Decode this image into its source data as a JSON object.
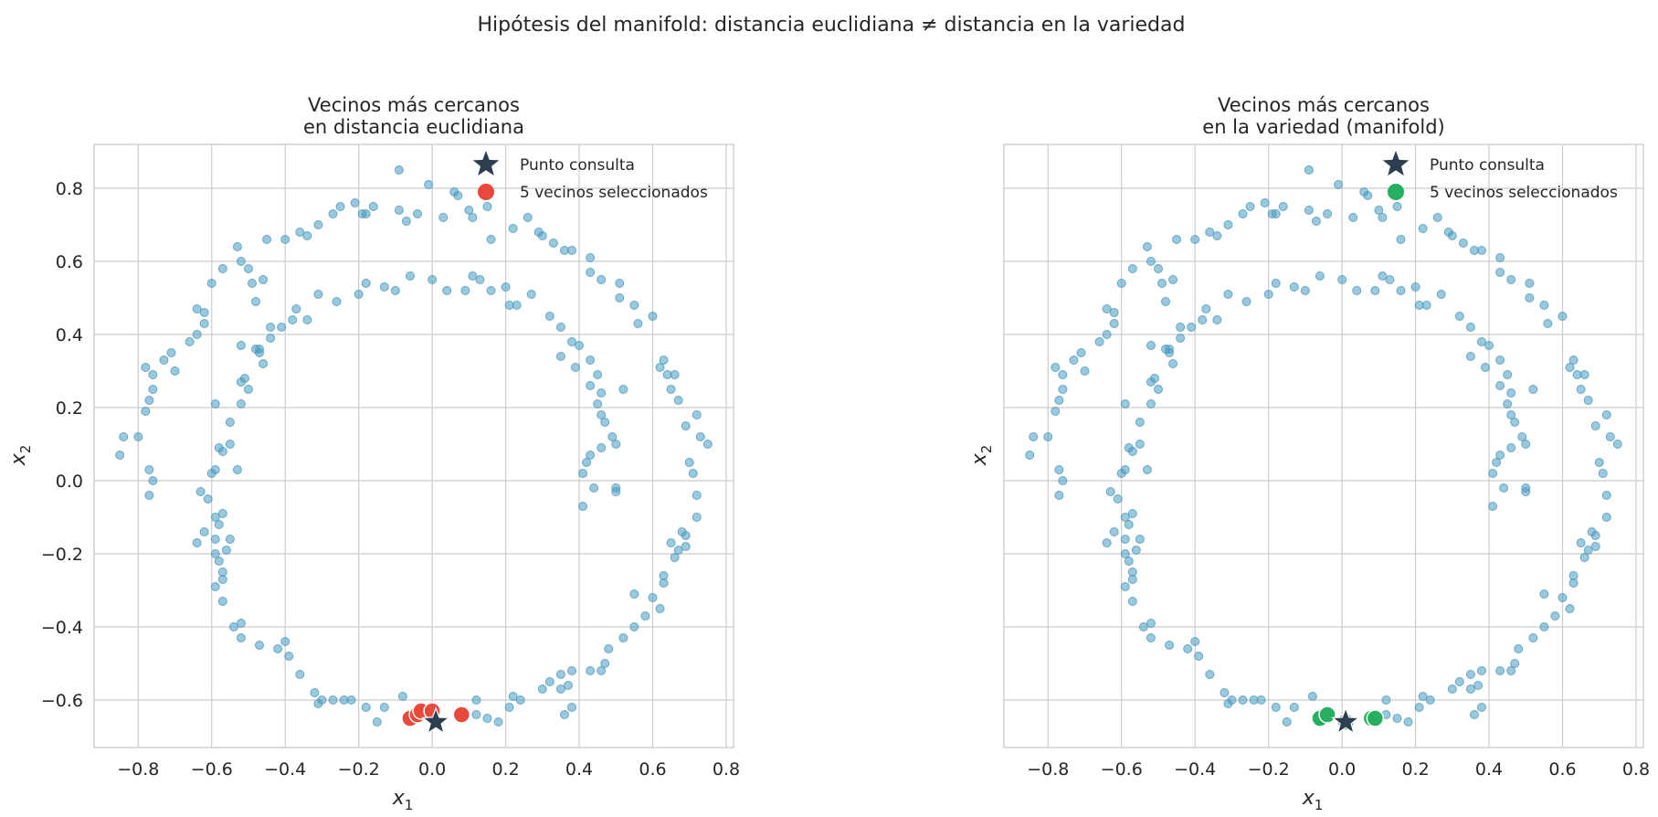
{
  "chart_data": {
    "suptitle": "Hipótesis del manifold: distancia euclidiana ≠ distancia en la variedad",
    "type": "scatter",
    "colors": {
      "data_points": "#4a9bbf",
      "query": "#2c3e50",
      "euclidean_neighbors": "#e8493a",
      "manifold_neighbors": "#27ae60",
      "grid": "#cccccc"
    },
    "xlim": [
      -0.92,
      0.82
    ],
    "ylim": [
      -0.73,
      0.92
    ],
    "xticks": [
      "−0.8",
      "−0.6",
      "−0.4",
      "−0.2",
      "0.0",
      "0.2",
      "0.4",
      "0.6",
      "0.8"
    ],
    "xtick_values": [
      -0.8,
      -0.6,
      -0.4,
      -0.2,
      0.0,
      0.2,
      0.4,
      0.6,
      0.8
    ],
    "yticks": [
      "−0.6",
      "−0.4",
      "−0.2",
      "0.0",
      "0.2",
      "0.4",
      "0.6",
      "0.8"
    ],
    "ytick_values": [
      -0.6,
      -0.4,
      -0.2,
      0.0,
      0.2,
      0.4,
      0.6,
      0.8
    ],
    "xlabel": "x",
    "xlabel_sub": "1",
    "ylabel": "x",
    "ylabel_sub": "2",
    "grid": true,
    "legend_position": "top-right",
    "data_points": [
      [
        -0.84,
        0.12
      ],
      [
        -0.85,
        0.07
      ],
      [
        -0.8,
        0.12
      ],
      [
        -0.78,
        0.19
      ],
      [
        -0.77,
        0.22
      ],
      [
        -0.76,
        0.25
      ],
      [
        -0.78,
        0.31
      ],
      [
        -0.76,
        0.29
      ],
      [
        -0.73,
        0.33
      ],
      [
        -0.71,
        0.35
      ],
      [
        -0.7,
        0.3
      ],
      [
        -0.66,
        0.38
      ],
      [
        -0.64,
        0.4
      ],
      [
        -0.64,
        0.47
      ],
      [
        -0.62,
        0.43
      ],
      [
        -0.62,
        0.46
      ],
      [
        -0.6,
        0.54
      ],
      [
        -0.57,
        0.58
      ],
      [
        -0.53,
        0.64
      ],
      [
        -0.52,
        0.6
      ],
      [
        -0.5,
        0.58
      ],
      [
        -0.48,
        0.49
      ],
      [
        -0.49,
        0.54
      ],
      [
        -0.45,
        0.66
      ],
      [
        -0.4,
        0.66
      ],
      [
        -0.36,
        0.68
      ],
      [
        -0.34,
        0.67
      ],
      [
        -0.31,
        0.7
      ],
      [
        -0.27,
        0.73
      ],
      [
        -0.25,
        0.75
      ],
      [
        -0.21,
        0.76
      ],
      [
        -0.19,
        0.73
      ],
      [
        -0.18,
        0.73
      ],
      [
        -0.16,
        0.75
      ],
      [
        -0.09,
        0.74
      ],
      [
        -0.07,
        0.71
      ],
      [
        -0.04,
        0.73
      ],
      [
        0.03,
        0.72
      ],
      [
        0.1,
        0.74
      ],
      [
        0.11,
        0.72
      ],
      [
        0.15,
        0.75
      ],
      [
        -0.09,
        0.85
      ],
      [
        -0.01,
        0.81
      ],
      [
        0.06,
        0.79
      ],
      [
        0.07,
        0.78
      ],
      [
        0.16,
        0.66
      ],
      [
        0.22,
        0.69
      ],
      [
        0.26,
        0.72
      ],
      [
        0.29,
        0.68
      ],
      [
        0.3,
        0.67
      ],
      [
        0.33,
        0.65
      ],
      [
        0.36,
        0.63
      ],
      [
        0.38,
        0.63
      ],
      [
        0.43,
        0.61
      ],
      [
        0.43,
        0.57
      ],
      [
        0.46,
        0.55
      ],
      [
        0.51,
        0.54
      ],
      [
        0.51,
        0.5
      ],
      [
        0.55,
        0.48
      ],
      [
        0.6,
        0.45
      ],
      [
        0.56,
        0.43
      ],
      [
        0.63,
        0.33
      ],
      [
        0.62,
        0.31
      ],
      [
        0.64,
        0.29
      ],
      [
        0.66,
        0.29
      ],
      [
        0.65,
        0.25
      ],
      [
        0.67,
        0.22
      ],
      [
        0.72,
        0.18
      ],
      [
        0.69,
        0.15
      ],
      [
        0.73,
        0.12
      ],
      [
        0.75,
        0.1
      ],
      [
        0.7,
        0.05
      ],
      [
        0.71,
        0.02
      ],
      [
        0.72,
        -0.04
      ],
      [
        0.72,
        -0.1
      ],
      [
        0.68,
        -0.14
      ],
      [
        0.69,
        -0.15
      ],
      [
        0.69,
        -0.18
      ],
      [
        0.67,
        -0.19
      ],
      [
        0.65,
        -0.17
      ],
      [
        0.66,
        -0.21
      ],
      [
        0.63,
        -0.26
      ],
      [
        0.63,
        -0.28
      ],
      [
        0.6,
        -0.32
      ],
      [
        0.62,
        -0.35
      ],
      [
        0.58,
        -0.37
      ],
      [
        0.55,
        -0.31
      ],
      [
        0.55,
        -0.4
      ],
      [
        0.52,
        -0.43
      ],
      [
        0.48,
        -0.46
      ],
      [
        0.47,
        -0.5
      ],
      [
        0.46,
        -0.52
      ],
      [
        0.43,
        -0.52
      ],
      [
        0.38,
        -0.52
      ],
      [
        0.35,
        -0.53
      ],
      [
        0.32,
        -0.55
      ],
      [
        0.35,
        -0.57
      ],
      [
        0.37,
        -0.56
      ],
      [
        0.38,
        -0.62
      ],
      [
        0.36,
        -0.64
      ],
      [
        0.3,
        -0.57
      ],
      [
        0.22,
        -0.59
      ],
      [
        0.21,
        -0.62
      ],
      [
        0.18,
        -0.66
      ],
      [
        0.15,
        -0.65
      ],
      [
        0.12,
        -0.64
      ],
      [
        0.12,
        -0.6
      ],
      [
        0.24,
        -0.6
      ],
      [
        -0.08,
        -0.59
      ],
      [
        -0.13,
        -0.62
      ],
      [
        -0.18,
        -0.62
      ],
      [
        -0.15,
        -0.66
      ],
      [
        -0.22,
        -0.6
      ],
      [
        -0.24,
        -0.6
      ],
      [
        -0.27,
        -0.6
      ],
      [
        -0.3,
        -0.6
      ],
      [
        -0.32,
        -0.58
      ],
      [
        -0.31,
        -0.61
      ],
      [
        -0.36,
        -0.53
      ],
      [
        -0.39,
        -0.48
      ],
      [
        -0.4,
        -0.44
      ],
      [
        -0.42,
        -0.46
      ],
      [
        -0.47,
        -0.45
      ],
      [
        -0.52,
        -0.39
      ],
      [
        -0.54,
        -0.4
      ],
      [
        -0.52,
        -0.43
      ],
      [
        -0.57,
        -0.33
      ],
      [
        -0.59,
        -0.29
      ],
      [
        -0.57,
        -0.25
      ],
      [
        -0.58,
        -0.22
      ],
      [
        -0.57,
        -0.27
      ],
      [
        -0.59,
        -0.2
      ],
      [
        -0.56,
        -0.19
      ],
      [
        -0.55,
        -0.16
      ],
      [
        -0.62,
        -0.14
      ],
      [
        -0.64,
        -0.17
      ],
      [
        -0.63,
        -0.03
      ],
      [
        -0.6,
        0.02
      ],
      [
        -0.59,
        0.03
      ],
      [
        -0.61,
        -0.05
      ],
      [
        -0.59,
        -0.1
      ],
      [
        -0.57,
        -0.09
      ],
      [
        -0.58,
        -0.12
      ],
      [
        -0.59,
        -0.16
      ],
      [
        -0.58,
        0.09
      ],
      [
        -0.57,
        0.08
      ],
      [
        -0.55,
        0.16
      ],
      [
        -0.52,
        0.21
      ],
      [
        -0.52,
        0.27
      ],
      [
        -0.51,
        0.28
      ],
      [
        -0.5,
        0.25
      ],
      [
        -0.47,
        0.35
      ],
      [
        -0.47,
        0.36
      ],
      [
        -0.46,
        0.32
      ],
      [
        -0.44,
        0.39
      ],
      [
        -0.41,
        0.42
      ],
      [
        -0.38,
        0.44
      ],
      [
        -0.37,
        0.47
      ],
      [
        -0.34,
        0.44
      ],
      [
        -0.31,
        0.51
      ],
      [
        -0.26,
        0.49
      ],
      [
        -0.2,
        0.51
      ],
      [
        -0.18,
        0.54
      ],
      [
        -0.13,
        0.53
      ],
      [
        -0.1,
        0.52
      ],
      [
        -0.06,
        0.56
      ],
      [
        0.0,
        0.55
      ],
      [
        0.04,
        0.52
      ],
      [
        0.09,
        0.52
      ],
      [
        0.11,
        0.56
      ],
      [
        0.13,
        0.55
      ],
      [
        0.16,
        0.52
      ],
      [
        0.21,
        0.48
      ],
      [
        0.23,
        0.48
      ],
      [
        0.27,
        0.51
      ],
      [
        0.32,
        0.45
      ],
      [
        0.35,
        0.42
      ],
      [
        0.38,
        0.38
      ],
      [
        0.4,
        0.37
      ],
      [
        0.43,
        0.33
      ],
      [
        0.45,
        0.29
      ],
      [
        0.43,
        0.26
      ],
      [
        0.46,
        0.24
      ],
      [
        0.45,
        0.21
      ],
      [
        0.46,
        0.18
      ],
      [
        0.47,
        0.16
      ],
      [
        0.49,
        0.12
      ],
      [
        0.5,
        0.1
      ],
      [
        0.46,
        0.09
      ],
      [
        0.43,
        0.07
      ],
      [
        0.42,
        0.05
      ],
      [
        0.41,
        0.02
      ],
      [
        0.5,
        -0.02
      ],
      [
        0.5,
        -0.03
      ],
      [
        -0.77,
        0.03
      ],
      [
        -0.77,
        -0.04
      ],
      [
        -0.76,
        0.0
      ],
      [
        -0.59,
        0.21
      ],
      [
        -0.44,
        0.42
      ],
      [
        -0.55,
        0.1
      ],
      [
        -0.53,
        0.03
      ],
      [
        -0.46,
        0.55
      ],
      [
        -0.52,
        0.37
      ],
      [
        -0.48,
        0.36
      ],
      [
        0.2,
        0.53
      ],
      [
        0.35,
        0.34
      ],
      [
        0.39,
        0.31
      ],
      [
        0.52,
        0.25
      ],
      [
        0.41,
        -0.07
      ],
      [
        0.44,
        -0.02
      ]
    ],
    "query_point": [
      0.01,
      -0.66
    ],
    "panels": [
      {
        "title_lines": [
          "Vecinos más cercanos",
          "en distancia euclidiana"
        ],
        "neighbor_color_key": "euclidean_neighbors",
        "neighbors": [
          [
            -0.06,
            -0.65
          ],
          [
            -0.04,
            -0.64
          ],
          [
            -0.03,
            -0.63
          ],
          [
            0.0,
            -0.63
          ],
          [
            0.08,
            -0.64
          ]
        ],
        "legend": [
          "Punto consulta",
          "5 vecinos seleccionados"
        ]
      },
      {
        "title_lines": [
          "Vecinos más cercanos",
          "en la variedad (manifold)"
        ],
        "neighbor_color_key": "manifold_neighbors",
        "neighbors": [
          [
            -0.06,
            -0.65
          ],
          [
            -0.04,
            -0.64
          ],
          [
            0.01,
            -0.66
          ],
          [
            0.08,
            -0.65
          ],
          [
            0.09,
            -0.65
          ]
        ],
        "legend": [
          "Punto consulta",
          "5 vecinos seleccionados"
        ]
      }
    ]
  }
}
